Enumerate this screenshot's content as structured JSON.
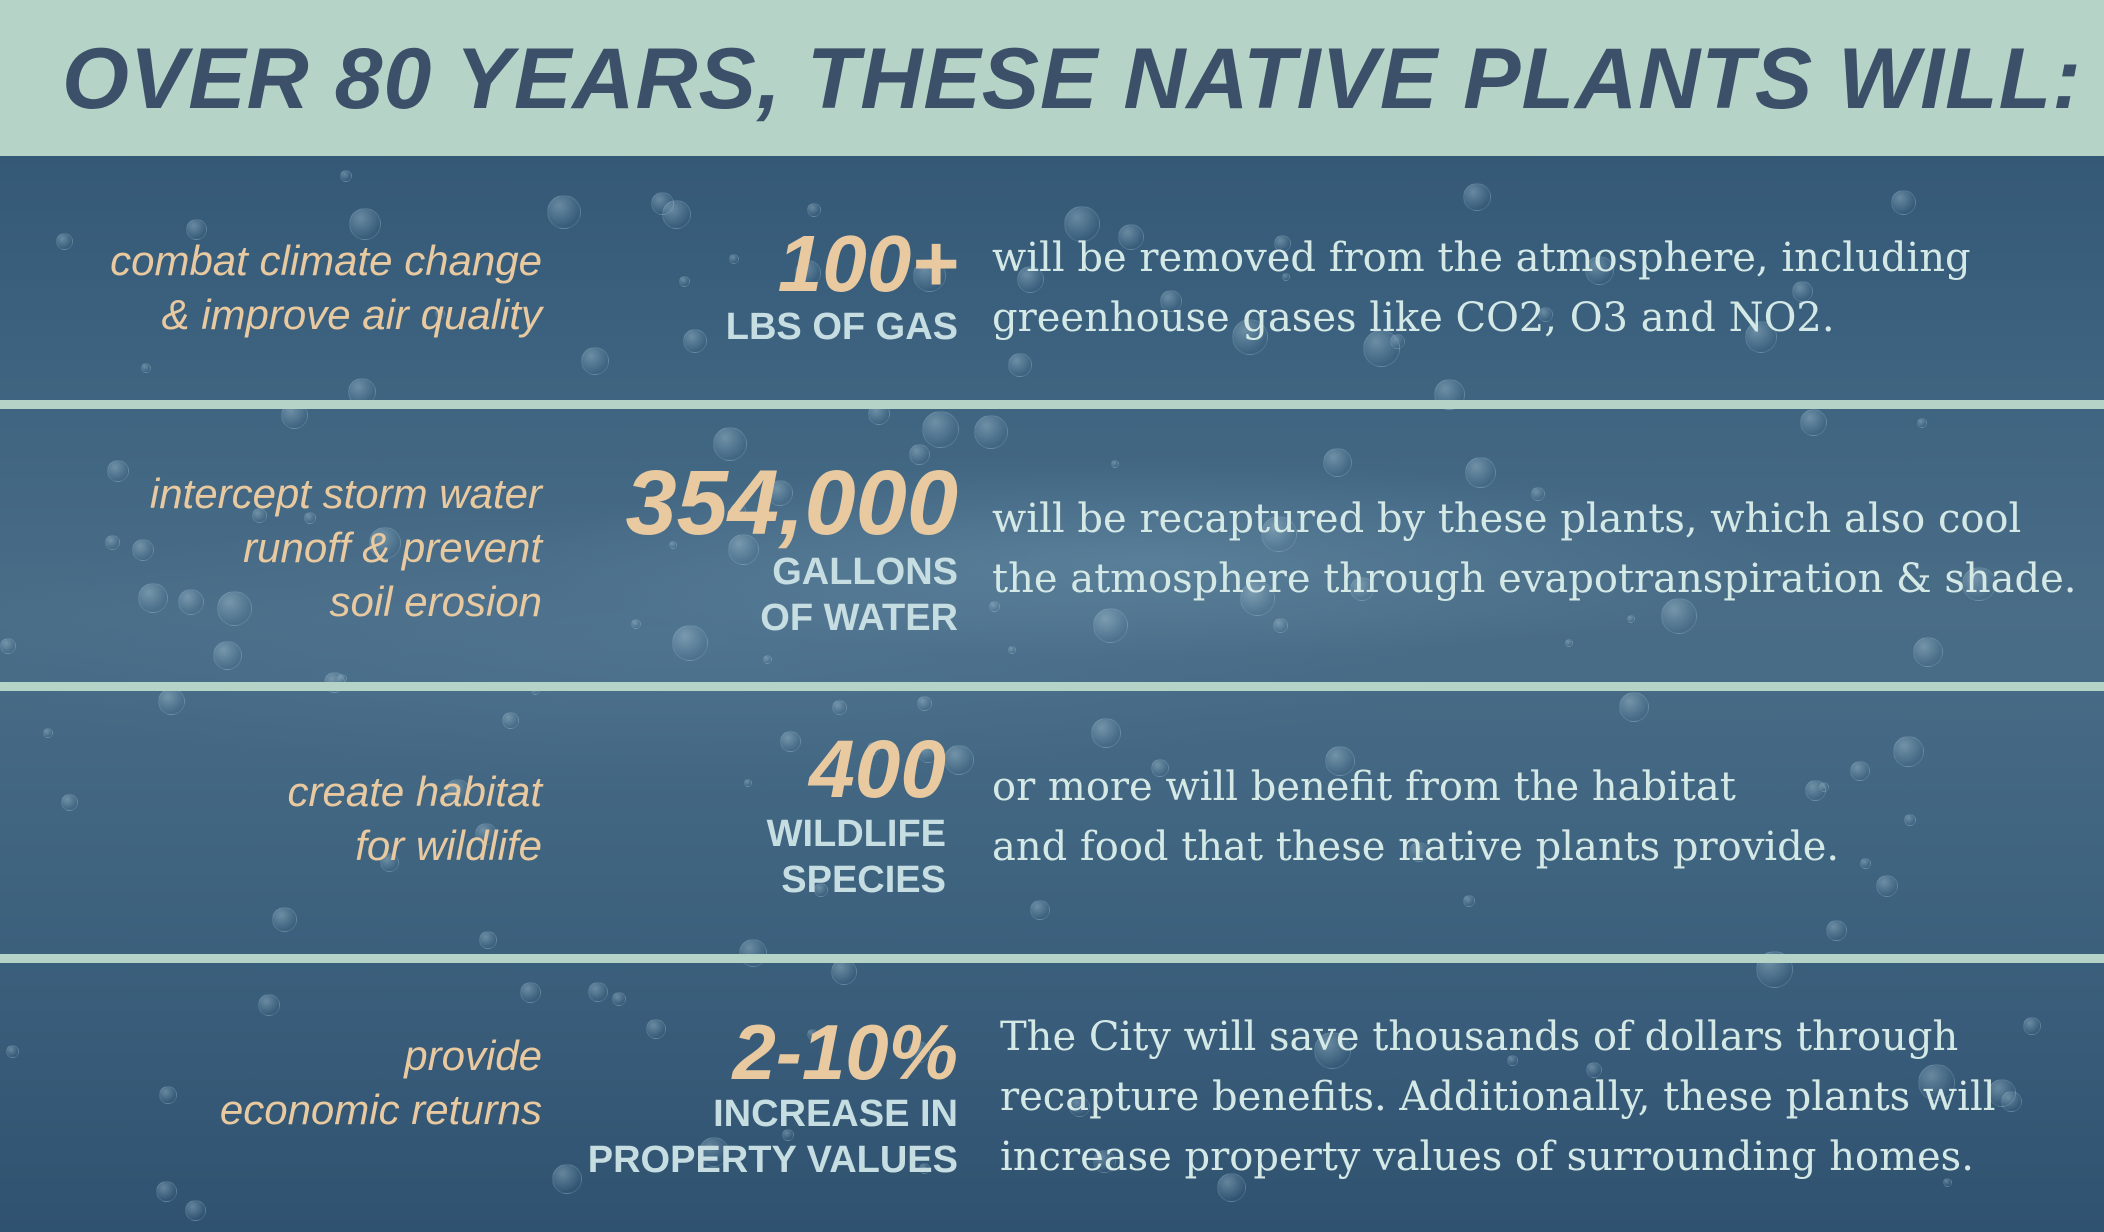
{
  "header": {
    "title": "OVER 80 YEARS, THESE NATIVE PLANTS WILL:"
  },
  "colors": {
    "header_bg": "#b5d3c7",
    "title": "#3d5069",
    "accent": "#e8c9a0",
    "body_text": "#d4e8e6",
    "background": "#35566f"
  },
  "rows": [
    {
      "goal": "combat climate change\n& improve air quality",
      "stat_value": "100+",
      "stat_unit": "LBS OF GAS",
      "description": "will be removed from the atmosphere, including\ngreenhouse gases like CO2, O3 and NO2."
    },
    {
      "goal": "intercept storm water\nrunoff & prevent\nsoil erosion",
      "stat_value": "354,000",
      "stat_unit": "GALLONS\nOF WATER",
      "description": "will be recaptured by these plants, which also cool\nthe atmosphere through evapotranspiration & shade."
    },
    {
      "goal": "create habitat\nfor wildlife",
      "stat_value": "400",
      "stat_unit": "WILDLIFE\nSPECIES",
      "description": "or more will benefit from the habitat\nand food that these native plants provide."
    },
    {
      "goal": "provide\neconomic returns",
      "stat_value": "2-10%",
      "stat_unit": "INCREASE IN\nPROPERTY VALUES",
      "description": "The City will save thousands of dollars through\nrecapture benefits. Additionally, these plants will\nincrease property values of surrounding homes."
    }
  ]
}
